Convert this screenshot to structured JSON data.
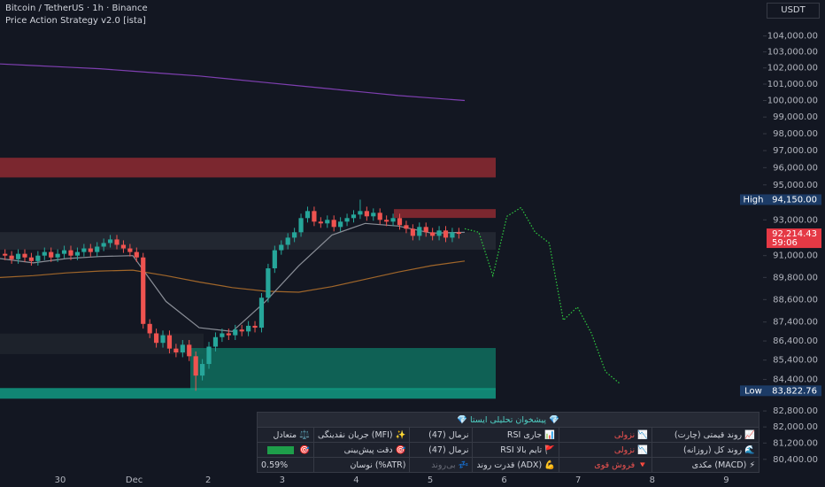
{
  "header": {
    "symbol": "Bitcoin / TetherUS · 1h · Binance",
    "indicator": "Price Action Strategy v2.0 [ista]",
    "currency": "USDT"
  },
  "chart_data": {
    "type": "candlestick",
    "log_scale": true,
    "up_color": "#26a69a",
    "down_color": "#ef5350",
    "open": [
      91100,
      91000,
      90800,
      91100,
      90900,
      90700,
      91000,
      91200,
      90900,
      91100,
      91300,
      91000,
      91200,
      91400,
      91200,
      91500,
      91700,
      91900,
      91600,
      91400,
      91200,
      90900,
      87300,
      86800,
      86300,
      86700,
      86000,
      85800,
      86200,
      85600,
      84600,
      85200,
      86100,
      86600,
      86800,
      86700,
      87000,
      86900,
      87200,
      87100,
      88700,
      90300,
      91300,
      91600,
      92000,
      92300,
      93100,
      93500,
      92900,
      92800,
      93000,
      92600,
      92900,
      93100,
      93300,
      93500,
      93200,
      93400,
      93000,
      92900,
      93100,
      92700,
      92500,
      92100,
      92600,
      92300,
      92100,
      92400,
      92000,
      92300
    ],
    "high": [
      91350,
      91250,
      91350,
      91350,
      91150,
      91250,
      91450,
      91450,
      91350,
      91550,
      91550,
      91450,
      91650,
      91650,
      91750,
      91950,
      92150,
      92150,
      91850,
      91650,
      91450,
      91150,
      87550,
      87050,
      86950,
      86950,
      86250,
      86450,
      86450,
      85850,
      85450,
      86350,
      86850,
      87050,
      87050,
      87250,
      87250,
      87450,
      87450,
      88950,
      90550,
      91550,
      91850,
      92250,
      92550,
      93350,
      93750,
      93750,
      93150,
      93250,
      93250,
      93150,
      93350,
      93550,
      94150,
      93750,
      93650,
      93650,
      93250,
      93350,
      93350,
      92950,
      92750,
      92850,
      92850,
      92550,
      92650,
      92650,
      92550,
      92550
    ],
    "low": [
      90750,
      90550,
      90550,
      90650,
      90450,
      90450,
      90750,
      90650,
      90650,
      90850,
      90750,
      90750,
      90950,
      90950,
      90950,
      91250,
      91450,
      91350,
      91150,
      90950,
      90650,
      87050,
      86550,
      86050,
      86050,
      85750,
      85550,
      85550,
      85350,
      83822.76,
      84350,
      84950,
      85850,
      86350,
      86450,
      86450,
      86650,
      86650,
      86850,
      86850,
      88450,
      90050,
      91050,
      91350,
      91750,
      92050,
      92850,
      92650,
      92550,
      92550,
      92350,
      92350,
      92650,
      92850,
      93050,
      92950,
      92950,
      92750,
      92650,
      92650,
      92450,
      92250,
      91850,
      91850,
      92050,
      91850,
      91850,
      91750,
      91750,
      91950
    ],
    "close": [
      91000,
      90800,
      91100,
      90900,
      90700,
      91000,
      91200,
      90900,
      91100,
      91300,
      91000,
      91200,
      91400,
      91200,
      91500,
      91700,
      91900,
      91600,
      91400,
      91200,
      90900,
      87300,
      86800,
      86300,
      86700,
      86000,
      85800,
      86200,
      85600,
      84600,
      85200,
      86100,
      86600,
      86800,
      86700,
      87000,
      86900,
      87200,
      87100,
      88700,
      90300,
      91300,
      91600,
      92000,
      92300,
      93100,
      93500,
      92900,
      92800,
      93000,
      92600,
      92900,
      93100,
      93300,
      93500,
      93200,
      93400,
      93000,
      92900,
      93100,
      92700,
      92500,
      92100,
      92600,
      92300,
      92100,
      92400,
      92000,
      92300,
      92214.43
    ],
    "overlays": [
      {
        "color": "#7e3fb0",
        "values": [
          102250,
          102150,
          102050,
          101950,
          101800,
          101650,
          101500,
          101300,
          101100,
          100900,
          100700,
          100500,
          100300,
          100150,
          100000
        ]
      },
      {
        "color": "#a0662a",
        "values": [
          89800,
          89900,
          90050,
          90150,
          90200,
          89900,
          89550,
          89250,
          89050,
          89000,
          89300,
          89700,
          90100,
          90450,
          90700
        ]
      },
      {
        "color": "#8a8e97",
        "values": [
          90840,
          90600,
          90840,
          90950,
          91000,
          88500,
          87100,
          86900,
          88500,
          90440,
          92150,
          92800,
          92650,
          92250,
          92300
        ]
      }
    ],
    "forecast": {
      "color": "#2ecc40",
      "values": [
        92500,
        92300,
        89900,
        93200,
        93700,
        92300,
        91700,
        87500,
        88200,
        86800,
        84800,
        84200
      ]
    },
    "zones": [
      {
        "low": 95430,
        "high": 96580,
        "color": "#8e2a31"
      },
      {
        "low": 93110,
        "high": 93610,
        "color": "#8e2a31"
      },
      {
        "low": 91330,
        "high": 92310,
        "color": "#262a34"
      },
      {
        "low": 85710,
        "high": 86790,
        "color": "#20242d"
      },
      {
        "low": 83870,
        "high": 86030,
        "color": "#0f6e5e"
      },
      {
        "low": 83420,
        "high": 83960,
        "color": "#129a82"
      }
    ],
    "ylim": [
      79700,
      106300
    ],
    "yticks": [
      {
        "value": 104000,
        "label": "104,000.00"
      },
      {
        "value": 103000,
        "label": "103,000.00"
      },
      {
        "value": 102000,
        "label": "102,000.00"
      },
      {
        "value": 101000,
        "label": "101,000.00"
      },
      {
        "value": 100000,
        "label": "100,000.00"
      },
      {
        "value": 99000,
        "label": "99,000.00"
      },
      {
        "value": 98000,
        "label": "98,000.00"
      },
      {
        "value": 97000,
        "label": "97,000.00"
      },
      {
        "value": 96000,
        "label": "96,000.00"
      },
      {
        "value": 95000,
        "label": "95,000.00"
      },
      {
        "value": 93000,
        "label": "93,000.00"
      },
      {
        "value": 91000,
        "label": "91,000.00"
      },
      {
        "value": 89800,
        "label": "89,800.00"
      },
      {
        "value": 88600,
        "label": "88,600.00"
      },
      {
        "value": 87400,
        "label": "87,400.00"
      },
      {
        "value": 86400,
        "label": "86,400.00"
      },
      {
        "value": 85400,
        "label": "85,400.00"
      },
      {
        "value": 84400,
        "label": "84,400.00"
      },
      {
        "value": 82800,
        "label": "82,800.00"
      },
      {
        "value": 82000,
        "label": "82,000.00"
      },
      {
        "value": 81200,
        "label": "81,200.00"
      },
      {
        "value": 80400,
        "label": "80,400.00"
      }
    ],
    "xtick_labels": [
      "30",
      "Dec",
      "2",
      "3",
      "4",
      "5",
      "6",
      "7",
      "8",
      "9"
    ],
    "markers": [
      {
        "name": "High",
        "value": 94150,
        "label": "94,150.00",
        "color": "#1c3b66"
      },
      {
        "value": 92214.43,
        "label": "92,214.43",
        "countdown": "59:06",
        "color": "#e53945"
      },
      {
        "name": "Low",
        "value": 83822.76,
        "label": "83,822.76",
        "color": "#1c3b66"
      }
    ]
  },
  "panel": {
    "title": "💎 پیشخوان تحلیلی ایستا 💎",
    "rows": [
      [
        "📈 روند قیمتی (چارت)",
        "📉 نزولی",
        "📊 جاری RSI",
        "نرمال (47)",
        "✨ (MFI) جریان نقدینگی",
        "⚖️ متعادل"
      ],
      [
        "🌊 روند کل (روزانه)",
        "📉 نزولی",
        "🚩 تایم بالا RSI",
        "نرمال (47)",
        "🎯 دقت پیش‌بینی",
        "🎯"
      ],
      [
        "⚡ (MACD) مکدی",
        "🔻 فروش قوی",
        "💪 (ADX) قدرت روند",
        "💤 بی‌روند",
        "(ATR%) نوسان",
        "0.59%"
      ]
    ]
  }
}
